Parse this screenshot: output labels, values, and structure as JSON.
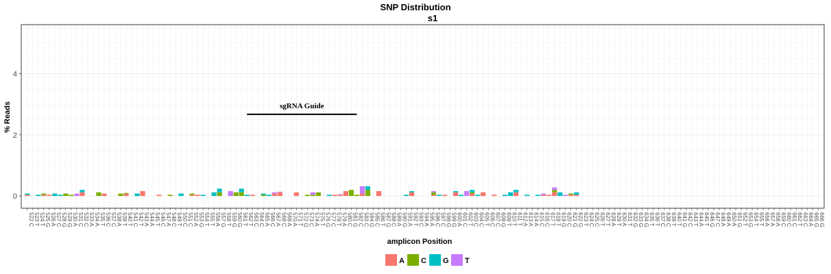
{
  "chart_data": {
    "type": "bar",
    "stacked": true,
    "title": "SNP Distribution",
    "subtitle": "s1",
    "xlabel": "amplicon Position",
    "ylabel": "% Reads",
    "ylim": [
      -0.4,
      5.6
    ],
    "y_ticks": [
      0,
      2,
      4
    ],
    "grid": true,
    "legend_position": "bottom",
    "annotation": {
      "text": "sgRNA Guide",
      "x_start": 562,
      "x_end": 582,
      "y": 2.67
    },
    "x_start": 522,
    "ref_bases": "CTTGACGGACCAATCCATTCTAATCACTCCAGTTAGTGGTTCCACACAATGCATGCTACGCCGCTGCAGATCAACCGGACTCCTCCGTTTAAACCTTGCGGTCCTTATATGGGTTCCTTGCTATGCAAAGTGTTAAACCCTCAGG",
    "series": [
      {
        "name": "A",
        "color": "#F8766D",
        "points": [
          [
            522,
            0.04
          ],
          [
            526,
            0.04
          ],
          [
            525,
            0.04
          ],
          [
            532,
            0.12
          ],
          [
            536,
            0.08
          ],
          [
            540,
            0.08
          ],
          [
            543,
            0.16
          ],
          [
            546,
            0.04
          ],
          [
            552,
            0.04
          ],
          [
            553,
            0.04
          ],
          [
            567,
            0.08
          ],
          [
            568,
            0.12
          ],
          [
            571,
            0.12
          ],
          [
            563,
            0.04
          ],
          [
            578,
            0.04
          ],
          [
            579,
            0.04
          ],
          [
            580,
            0.16
          ],
          [
            583,
            0.08
          ],
          [
            586,
            0.16
          ],
          [
            592,
            0.12
          ],
          [
            596,
            0.04
          ],
          [
            598,
            0.04
          ],
          [
            600,
            0.12
          ],
          [
            603,
            0.08
          ],
          [
            605,
            0.12
          ],
          [
            607,
            0.04
          ],
          [
            611,
            0.12
          ],
          [
            616,
            0.04
          ],
          [
            617,
            0.04
          ],
          [
            618,
            0.12
          ],
          [
            621,
            0.04
          ],
          [
            622,
            0.04
          ]
        ]
      },
      {
        "name": "C",
        "color": "#7CAE00",
        "points": [
          [
            524,
            0.0
          ],
          [
            525,
            0.04
          ],
          [
            529,
            0.08
          ],
          [
            530,
            0.04
          ],
          [
            535,
            0.12
          ],
          [
            539,
            0.08
          ],
          [
            540,
            0.02
          ],
          [
            548,
            0.04
          ],
          [
            552,
            0.04
          ],
          [
            557,
            0.12
          ],
          [
            560,
            0.12
          ],
          [
            561,
            0.12
          ],
          [
            565,
            0.04
          ],
          [
            573,
            0.04
          ],
          [
            574,
            0.04
          ],
          [
            575,
            0.12
          ],
          [
            581,
            0.2
          ],
          [
            582,
            0.04
          ],
          [
            584,
            0.2
          ],
          [
            596,
            0.08
          ],
          [
            603,
            0.04
          ],
          [
            618,
            0.08
          ],
          [
            621,
            0.04
          ]
        ]
      },
      {
        "name": "G",
        "color": "#00BFC4",
        "points": [
          [
            522,
            0.04
          ],
          [
            524,
            0.04
          ],
          [
            527,
            0.08
          ],
          [
            528,
            0.04
          ],
          [
            532,
            0.08
          ],
          [
            542,
            0.08
          ],
          [
            550,
            0.08
          ],
          [
            554,
            0.04
          ],
          [
            556,
            0.12
          ],
          [
            557,
            0.12
          ],
          [
            561,
            0.12
          ],
          [
            562,
            0.04
          ],
          [
            565,
            0.04
          ],
          [
            566,
            0.04
          ],
          [
            577,
            0.04
          ],
          [
            584,
            0.12
          ],
          [
            591,
            0.04
          ],
          [
            592,
            0.04
          ],
          [
            597,
            0.04
          ],
          [
            600,
            0.04
          ],
          [
            601,
            0.04
          ],
          [
            603,
            0.08
          ],
          [
            604,
            0.04
          ],
          [
            609,
            0.04
          ],
          [
            610,
            0.12
          ],
          [
            611,
            0.08
          ],
          [
            613,
            0.04
          ],
          [
            615,
            0.04
          ],
          [
            619,
            0.12
          ],
          [
            622,
            0.08
          ]
        ]
      },
      {
        "name": "T",
        "color": "#C77CFF",
        "points": [
          [
            531,
            0.08
          ],
          [
            559,
            0.16
          ],
          [
            567,
            0.04
          ],
          [
            568,
            0.02
          ],
          [
            574,
            0.08
          ],
          [
            579,
            0.02
          ],
          [
            583,
            0.24
          ],
          [
            596,
            0.04
          ],
          [
            602,
            0.16
          ],
          [
            616,
            0.04
          ],
          [
            618,
            0.08
          ],
          [
            620,
            0.04
          ]
        ]
      }
    ]
  }
}
